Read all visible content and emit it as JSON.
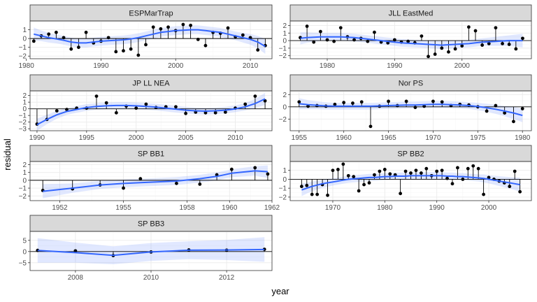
{
  "chart_data": {
    "type": "scatter",
    "xlabel": "year",
    "ylabel": "residual",
    "grid": true,
    "panels": [
      {
        "title": "ESPMarTrap",
        "xlim": [
          1980.5,
          2012.9
        ],
        "ylim": [
          -2.3,
          2.0
        ],
        "xticks": [
          1980,
          1990,
          2000,
          2010
        ],
        "yticks": [
          -2,
          -1,
          0,
          1
        ],
        "x": [
          1981,
          1982,
          1983,
          1984,
          1985,
          1986,
          1987,
          1988,
          1989,
          1990,
          1991,
          1992,
          1993,
          1994,
          1995,
          1996,
          1997,
          1998,
          1999,
          2000,
          2001,
          2002,
          2003,
          2004,
          2005,
          2006,
          2007,
          2008,
          2009,
          2010,
          2011,
          2012
        ],
        "y": [
          -0.3,
          0.3,
          0.5,
          0.7,
          0.1,
          -1.2,
          -1.0,
          0.7,
          -0.5,
          -0.3,
          0.1,
          -1.5,
          -1.4,
          -1.2,
          -1.9,
          -0.7,
          1.3,
          1.1,
          1.3,
          0.9,
          1.6,
          1.5,
          -0.1,
          -0.8,
          0.7,
          0.6,
          1.2,
          0.2,
          0.4,
          0.1,
          -1.3,
          -0.8
        ],
        "fit": [
          0.5,
          0.3,
          0.1,
          -0.05,
          -0.2,
          -0.4,
          -0.5,
          -0.5,
          -0.4,
          -0.3,
          -0.25,
          -0.2,
          -0.15,
          -0.05,
          0.1,
          0.3,
          0.5,
          0.7,
          0.8,
          0.9,
          0.95,
          1.0,
          1.0,
          0.9,
          0.8,
          0.7,
          0.5,
          0.3,
          0.1,
          -0.1,
          -0.4,
          -0.9
        ],
        "se": [
          0.75,
          0.6,
          0.55,
          0.5,
          0.5,
          0.5,
          0.5,
          0.5,
          0.5,
          0.5,
          0.5,
          0.5,
          0.5,
          0.5,
          0.5,
          0.5,
          0.5,
          0.5,
          0.5,
          0.5,
          0.5,
          0.5,
          0.5,
          0.5,
          0.5,
          0.5,
          0.5,
          0.5,
          0.55,
          0.6,
          0.7,
          0.85
        ]
      },
      {
        "title": "JLL EastMed",
        "xlim": [
          1974.5,
          2010.3
        ],
        "ylim": [
          -2.4,
          2.6
        ],
        "xticks": [
          1980,
          1990,
          2000
        ],
        "yticks": [
          -2,
          -1,
          0,
          1,
          2
        ],
        "x": [
          1976,
          1977,
          1978,
          1979,
          1980,
          1981,
          1982,
          1983,
          1984,
          1985,
          1986,
          1987,
          1988,
          1989,
          1990,
          1991,
          1992,
          1993,
          1994,
          1995,
          1996,
          1997,
          1998,
          1999,
          2000,
          2001,
          2002,
          2003,
          2004,
          2005,
          2006,
          2007,
          2008,
          2009
        ],
        "y": [
          0.4,
          1.9,
          -0.2,
          1.2,
          0.1,
          -0.1,
          1.7,
          0.5,
          0.1,
          0.3,
          -0.1,
          1.1,
          -0.2,
          -0.3,
          0.1,
          -0.2,
          -0.1,
          -0.3,
          0.6,
          -2.1,
          -1.8,
          -1.0,
          -1.5,
          -1.1,
          -0.7,
          1.8,
          1.3,
          -0.6,
          -0.4,
          1.7,
          -0.4,
          -0.5,
          -1.1,
          0.3
        ],
        "fit": [
          0.3,
          0.4,
          0.45,
          0.5,
          0.5,
          0.5,
          0.5,
          0.45,
          0.4,
          0.3,
          0.2,
          0.1,
          0.0,
          -0.1,
          -0.2,
          -0.3,
          -0.35,
          -0.4,
          -0.45,
          -0.5,
          -0.55,
          -0.6,
          -0.55,
          -0.5,
          -0.45,
          -0.4,
          -0.3,
          -0.2,
          -0.15,
          -0.1,
          -0.05,
          0.0,
          0.0,
          0.0
        ],
        "se": [
          0.8,
          0.7,
          0.6,
          0.55,
          0.5,
          0.5,
          0.5,
          0.5,
          0.5,
          0.5,
          0.5,
          0.5,
          0.5,
          0.5,
          0.5,
          0.5,
          0.5,
          0.5,
          0.5,
          0.5,
          0.5,
          0.5,
          0.5,
          0.5,
          0.5,
          0.5,
          0.5,
          0.5,
          0.55,
          0.6,
          0.65,
          0.7,
          0.8,
          0.9
        ]
      },
      {
        "title": "JP LL NEA",
        "xlim": [
          1989.3,
          2013.7
        ],
        "ylim": [
          -3.3,
          2.7
        ],
        "xticks": [
          1990,
          1995,
          2000,
          2005,
          2010
        ],
        "yticks": [
          -3,
          -2,
          -1,
          0,
          1,
          2
        ],
        "x": [
          1990,
          1991,
          1992,
          1993,
          1994,
          1995,
          1996,
          1997,
          1998,
          1999,
          2000,
          2001,
          2002,
          2003,
          2004,
          2005,
          2006,
          2007,
          2008,
          2009,
          2010,
          2011,
          2012,
          2013
        ],
        "y": [
          -2.3,
          -1.6,
          -0.3,
          -0.1,
          0.1,
          0.1,
          1.9,
          0.9,
          -0.6,
          0.4,
          0.1,
          0.7,
          0.2,
          0.3,
          0.3,
          -0.7,
          -0.5,
          -0.6,
          -0.6,
          -0.5,
          0.1,
          0.7,
          1.9,
          1.2
        ],
        "fit": [
          -2.4,
          -1.6,
          -0.9,
          -0.4,
          -0.1,
          0.2,
          0.35,
          0.45,
          0.5,
          0.5,
          0.45,
          0.35,
          0.25,
          0.1,
          -0.05,
          -0.2,
          -0.3,
          -0.35,
          -0.3,
          -0.2,
          0.0,
          0.3,
          0.8,
          1.5
        ],
        "se": [
          0.9,
          0.7,
          0.6,
          0.5,
          0.5,
          0.5,
          0.5,
          0.5,
          0.5,
          0.5,
          0.5,
          0.5,
          0.5,
          0.5,
          0.5,
          0.5,
          0.5,
          0.5,
          0.5,
          0.5,
          0.5,
          0.55,
          0.7,
          0.9
        ]
      },
      {
        "title": "Nor PS",
        "xlim": [
          1954.0,
          1981.0
        ],
        "ylim": [
          -3.9,
          2.6
        ],
        "xticks": [
          1955,
          1960,
          1965,
          1970,
          1975,
          1980
        ],
        "yticks": [
          -2,
          0,
          2
        ],
        "x": [
          1955,
          1956,
          1957,
          1958,
          1959,
          1960,
          1961,
          1962,
          1963,
          1964,
          1965,
          1966,
          1967,
          1968,
          1969,
          1970,
          1971,
          1972,
          1973,
          1974,
          1975,
          1976,
          1977,
          1978,
          1979,
          1980
        ],
        "y": [
          0.8,
          0.1,
          0.2,
          0.1,
          0.4,
          0.7,
          0.6,
          0.8,
          -3.2,
          0.1,
          0.9,
          0.2,
          0.9,
          -0.1,
          0.1,
          0.9,
          0.8,
          0.2,
          0.4,
          0.3,
          0.0,
          -0.7,
          0.2,
          -1.0,
          -2.4,
          -0.3
        ],
        "fit": [
          0.5,
          0.35,
          0.25,
          0.15,
          0.1,
          0.1,
          0.1,
          0.1,
          0.1,
          0.15,
          0.2,
          0.25,
          0.3,
          0.3,
          0.35,
          0.4,
          0.4,
          0.35,
          0.3,
          0.2,
          0.05,
          -0.15,
          -0.4,
          -0.7,
          -1.0,
          -1.4
        ],
        "se": [
          0.9,
          0.75,
          0.65,
          0.6,
          0.55,
          0.55,
          0.55,
          0.55,
          0.55,
          0.55,
          0.55,
          0.55,
          0.55,
          0.55,
          0.55,
          0.55,
          0.55,
          0.55,
          0.55,
          0.55,
          0.6,
          0.65,
          0.75,
          0.85,
          1.0,
          1.1
        ]
      },
      {
        "title": "SP BB1",
        "xlim": [
          1950.6,
          1962.0
        ],
        "ylim": [
          -2.6,
          2.4
        ],
        "xticks": [
          1952,
          1955,
          1958,
          1960,
          1962
        ],
        "yticks": [
          -2,
          -1,
          0,
          1,
          2
        ],
        "x": [
          1951.2,
          1952.6,
          1953.9,
          1955.0,
          1955.8,
          1957.5,
          1958.6,
          1959.4,
          1960.1,
          1961.2,
          1961.8
        ],
        "y": [
          -1.3,
          -1.1,
          -0.6,
          -1.0,
          0.2,
          -0.4,
          -0.5,
          0.7,
          1.4,
          1.6,
          0.8
        ],
        "fit": [
          -1.4,
          -1.0,
          -0.6,
          -0.4,
          -0.3,
          -0.1,
          0.2,
          0.5,
          0.9,
          1.2,
          1.1
        ],
        "se": [
          0.9,
          0.6,
          0.5,
          0.5,
          0.5,
          0.5,
          0.5,
          0.5,
          0.5,
          0.6,
          0.8
        ]
      },
      {
        "title": "SP BB2",
        "xlim": [
          1961.8,
          2008.2
        ],
        "ylim": [
          -2.4,
          2.0
        ],
        "xticks": [
          1970,
          1980,
          1990,
          2000
        ],
        "yticks": [
          -2,
          -1,
          0,
          1
        ],
        "x": [
          1964,
          1965,
          1966,
          1967,
          1968,
          1969,
          1970,
          1971,
          1972,
          1973,
          1974,
          1975,
          1976,
          1977,
          1978,
          1979,
          1980,
          1981,
          1982,
          1983,
          1984,
          1985,
          1986,
          1987,
          1988,
          1989,
          1990,
          1991,
          1992,
          1993,
          1994,
          1995,
          1996,
          1997,
          1998,
          1999,
          2000,
          2001,
          2002,
          2003,
          2004,
          2005,
          2006
        ],
        "y": [
          -0.8,
          -0.7,
          -1.7,
          -1.7,
          -0.6,
          -1.8,
          1.0,
          1.1,
          1.7,
          0.4,
          0.3,
          -1.3,
          -0.6,
          -0.4,
          0.5,
          0.9,
          1.1,
          0.6,
          0.5,
          -1.6,
          0.9,
          0.7,
          1.0,
          0.7,
          1.2,
          0.4,
          0.9,
          1.0,
          0.1,
          -0.5,
          1.3,
          0.0,
          1.2,
          1.5,
          1.2,
          -1.7,
          0.2,
          0.0,
          -0.2,
          -0.4,
          -0.8,
          0.9,
          -1.4
        ],
        "fit": [
          -1.2,
          -1.0,
          -0.8,
          -0.65,
          -0.5,
          -0.4,
          -0.3,
          -0.2,
          -0.1,
          0.0,
          0.05,
          0.1,
          0.15,
          0.2,
          0.2,
          0.25,
          0.3,
          0.3,
          0.35,
          0.35,
          0.35,
          0.4,
          0.4,
          0.4,
          0.4,
          0.4,
          0.4,
          0.4,
          0.35,
          0.35,
          0.3,
          0.3,
          0.25,
          0.2,
          0.15,
          0.1,
          0.0,
          -0.1,
          -0.2,
          -0.3,
          -0.4,
          -0.5,
          -0.6
        ],
        "se": [
          0.7,
          0.6,
          0.55,
          0.5,
          0.45,
          0.45,
          0.4,
          0.4,
          0.4,
          0.4,
          0.4,
          0.4,
          0.4,
          0.4,
          0.4,
          0.4,
          0.4,
          0.4,
          0.4,
          0.4,
          0.4,
          0.4,
          0.4,
          0.4,
          0.4,
          0.4,
          0.4,
          0.4,
          0.4,
          0.4,
          0.4,
          0.4,
          0.4,
          0.4,
          0.4,
          0.45,
          0.45,
          0.5,
          0.55,
          0.6,
          0.65,
          0.7,
          0.8
        ]
      },
      {
        "title": "SP BB3",
        "xlim": [
          2006.8,
          2013.2
        ],
        "ylim": [
          -8.5,
          9.0
        ],
        "xticks": [
          2008,
          2010,
          2012
        ],
        "yticks": [
          -5,
          0,
          5
        ],
        "x": [
          2007,
          2008,
          2009,
          2010,
          2011,
          2012,
          2013
        ],
        "y": [
          0.5,
          0.3,
          -1.8,
          -0.2,
          0.7,
          0.6,
          1.0
        ],
        "fit": [
          0.5,
          -0.5,
          -1.7,
          -0.2,
          0.6,
          0.7,
          0.9
        ],
        "se": [
          5.5,
          4.5,
          4.0,
          4.0,
          4.0,
          4.5,
          5.5
        ]
      }
    ]
  }
}
